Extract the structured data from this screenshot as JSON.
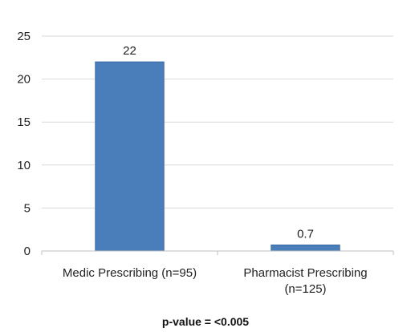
{
  "chart_data": {
    "type": "bar",
    "categories": [
      [
        "Medic Prescribing (n=95)"
      ],
      [
        "Pharmacist Prescribing",
        "(n=125)"
      ]
    ],
    "values": [
      22,
      0.7
    ],
    "data_labels": [
      "22",
      "0.7"
    ],
    "ylim": [
      0,
      25
    ],
    "yticks": [
      0,
      5,
      10,
      15,
      20,
      25
    ],
    "grid": true,
    "bar_color": "#4a7ebb",
    "bar_edge_color": "#3a6aa5",
    "grid_color": "#d9d9d9",
    "axis_color": "#bfbfbf",
    "annotation": "p-value = <0.005"
  }
}
